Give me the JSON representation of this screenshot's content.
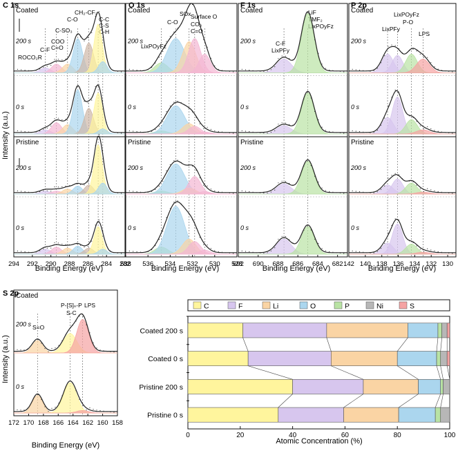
{
  "figure": {
    "y_axis_label": "Intensity (a.u.)",
    "x_axis_label": "Binding Energy (eV)",
    "condition_labels": {
      "coated": "Coated",
      "pristine": "Pristine"
    },
    "time_labels": {
      "t200": "200 s",
      "t0": "0 s"
    }
  },
  "colors": {
    "C": "#FFF59D",
    "F": "#D7C6EE",
    "Li": "#FAD4A4",
    "O": "#ABD6EE",
    "P": "#B9E3A4",
    "Ni": "#B7B7B7",
    "S": "#F5A3A3",
    "pink": "#F3B7D3",
    "brown": "#CFB8A8",
    "envelope": "#222222"
  },
  "chart_data": [
    {
      "type": "line",
      "id": "C1s",
      "title": "C 1s",
      "xlabel": "Binding Energy (eV)",
      "ylabel": "Intensity (a.u.)",
      "x_ticks": [
        "294",
        "292",
        "290",
        "288",
        "286",
        "284",
        "282"
      ],
      "xlim": [
        294,
        282
      ],
      "peak_labels": [
        "ROCO₂R",
        "C-F",
        "COO",
        "C=O",
        "C-SO₃",
        "C-O",
        "CH₂-CF₂",
        "C-C",
        "C-S",
        "C-H"
      ],
      "peak_positions_eV": [
        290.6,
        289.4,
        288.2,
        287.1,
        285.9,
        284.9,
        284.4
      ],
      "traces": [
        {
          "condition": "Coated",
          "time": "200 s",
          "component_heights": [
            0.08,
            0.14,
            0.14,
            0.55,
            0.48,
            0.78,
            0.18
          ]
        },
        {
          "condition": "Coated",
          "time": "0 s",
          "component_heights": [
            0.08,
            0.22,
            0.18,
            0.86,
            0.5,
            0.8,
            0.1
          ]
        },
        {
          "condition": "Pristine",
          "time": "200 s",
          "component_heights": [
            0.06,
            0.06,
            0.1,
            0.16,
            0.18,
            0.98,
            0.22
          ]
        },
        {
          "condition": "Pristine",
          "time": "0 s",
          "component_heights": [
            0.1,
            0.14,
            0.12,
            0.16,
            0.12,
            0.55,
            0.1
          ]
        }
      ]
    },
    {
      "type": "line",
      "id": "O1s",
      "title": "O 1s",
      "xlabel": "Binding Energy (eV)",
      "x_ticks": [
        "538",
        "536",
        "534",
        "532",
        "530",
        "528"
      ],
      "xlim": [
        538,
        528
      ],
      "peak_labels": [
        "LixPOyFz",
        "C-O",
        "SOx",
        "CO₃",
        "Surface O",
        "C=O"
      ],
      "peak_positions_eV": [
        534.8,
        533.5,
        532.3,
        531.8,
        530.9
      ],
      "traces": [
        {
          "condition": "Coated",
          "time": "200 s",
          "component_heights": [
            0.16,
            0.55,
            0.5,
            0.55,
            0.3
          ]
        },
        {
          "condition": "Coated",
          "time": "0 s",
          "component_heights": [
            0.06,
            0.55,
            0.2,
            0.15,
            0.04
          ]
        },
        {
          "condition": "Pristine",
          "time": "200 s",
          "component_heights": [
            0.06,
            0.6,
            0.12,
            0.35,
            0.05
          ]
        },
        {
          "condition": "Pristine",
          "time": "0 s",
          "component_heights": [
            0.14,
            0.95,
            0.3,
            0.25,
            0.08
          ]
        }
      ]
    },
    {
      "type": "line",
      "id": "F1s",
      "title": "F 1s",
      "xlabel": "Binding Energy (eV)",
      "x_ticks": [
        "692",
        "690",
        "688",
        "686",
        "684",
        "682"
      ],
      "xlim": [
        692,
        681
      ],
      "peak_labels": [
        "C-F",
        "LixPFy",
        "LiF",
        "TMF₂",
        "LixPOyFz"
      ],
      "peak_positions_eV": [
        687.4,
        685.0
      ],
      "traces": [
        {
          "condition": "Coated",
          "time": "200 s",
          "component_heights": [
            0.22,
            0.95
          ]
        },
        {
          "condition": "Coated",
          "time": "0 s",
          "component_heights": [
            0.16,
            0.8
          ]
        },
        {
          "condition": "Pristine",
          "time": "200 s",
          "component_heights": [
            0.2,
            0.65
          ]
        },
        {
          "condition": "Pristine",
          "time": "0 s",
          "component_heights": [
            0.3,
            0.55
          ]
        }
      ]
    },
    {
      "type": "line",
      "id": "P2p",
      "title": "P 2p",
      "xlabel": "Binding Energy (eV)",
      "x_ticks": [
        "142",
        "140",
        "138",
        "136",
        "134",
        "132",
        "130"
      ],
      "xlim": [
        142,
        129
      ],
      "peak_labels": [
        "LixPFy",
        "LixPOyFz",
        "P-O",
        "LPS"
      ],
      "peak_positions_eV": [
        137.3,
        136.1,
        134.4,
        133.0
      ],
      "traces": [
        {
          "condition": "Coated",
          "time": "200 s",
          "component_heights": [
            0.3,
            0.28,
            0.3,
            0.22
          ]
        },
        {
          "condition": "Coated",
          "time": "0 s",
          "component_heights": [
            0.32,
            0.72,
            0.28,
            0.08
          ]
        },
        {
          "condition": "Pristine",
          "time": "200 s",
          "component_heights": [
            0.18,
            0.3,
            0.22,
            0.04
          ]
        },
        {
          "condition": "Pristine",
          "time": "0 s",
          "component_heights": [
            0.22,
            0.6,
            0.2,
            0.04
          ]
        }
      ]
    },
    {
      "type": "line",
      "id": "S2p",
      "title": "S 2p",
      "xlabel": "Binding Energy (eV)",
      "x_ticks": [
        "172",
        "170",
        "168",
        "166",
        "164",
        "162",
        "160",
        "158"
      ],
      "xlim": [
        172,
        158
      ],
      "peak_labels": [
        "S=O",
        "P-[S]ₙ-P",
        "S-C",
        "LPS"
      ],
      "peak_positions_eV": [
        168.8,
        164.4,
        162.7
      ],
      "traces": [
        {
          "condition": "Coated",
          "time": "200 s",
          "component_heights": [
            0.22,
            0.35,
            0.6
          ]
        },
        {
          "condition": "Coated",
          "time": "0 s",
          "component_heights": [
            0.35,
            0.6,
            0.05
          ]
        }
      ]
    },
    {
      "type": "bar",
      "id": "atomic",
      "orientation": "horizontal-stacked",
      "xlabel": "Atomic Concentration (%)",
      "xlim": [
        0,
        100
      ],
      "x_ticks": [
        "0",
        "20",
        "40",
        "60",
        "80",
        "100"
      ],
      "legend": [
        "C",
        "F",
        "Li",
        "O",
        "P",
        "Ni",
        "S"
      ],
      "categories": [
        "Coated 200 s",
        "Coated 0 s",
        "Pristine 200 s",
        "Pristine 0 s"
      ],
      "series": [
        {
          "name": "C",
          "values": [
            21.0,
            23.0,
            40.0,
            34.5
          ]
        },
        {
          "name": "F",
          "values": [
            32.0,
            31.7,
            27.0,
            25.0
          ]
        },
        {
          "name": "Li",
          "values": [
            31.0,
            25.3,
            21.0,
            21.0
          ]
        },
        {
          "name": "O",
          "values": [
            11.5,
            15.0,
            8.5,
            14.0
          ]
        },
        {
          "name": "P",
          "values": [
            1.5,
            1.5,
            1.0,
            2.0
          ]
        },
        {
          "name": "Ni",
          "values": [
            2.0,
            2.5,
            2.5,
            3.5
          ]
        },
        {
          "name": "S",
          "values": [
            1.0,
            1.0,
            0.0,
            0.0
          ]
        }
      ]
    }
  ]
}
